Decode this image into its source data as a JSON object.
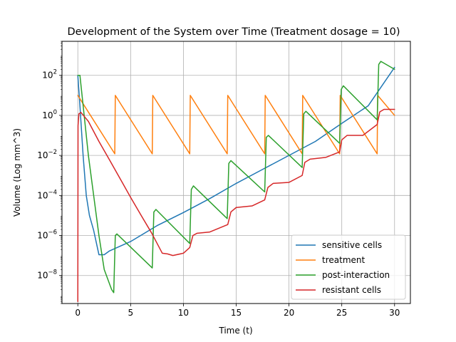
{
  "chart_data": {
    "type": "line",
    "title": "Development of the System over Time (Treatment dosage = 10)",
    "xlabel": "Time (t)",
    "ylabel": "Volume (Log mm^3)",
    "y_scale": "log",
    "xlim": [
      -1.5,
      31.5
    ],
    "ylim": [
      4e-10,
      5000
    ],
    "x_ticks": [
      0,
      5,
      10,
      15,
      20,
      25,
      30
    ],
    "x_tick_labels": [
      "0",
      "5",
      "10",
      "15",
      "20",
      "25",
      "30"
    ],
    "y_tick_exponents": [
      -8,
      -6,
      -4,
      -2,
      0,
      2
    ],
    "y_tick_base": "10",
    "grid": true,
    "legend_position": "lower-right",
    "series": [
      {
        "name": "sensitive cells",
        "color": "#1f77b4",
        "points": [
          [
            0,
            100
          ],
          [
            0.2,
            3
          ],
          [
            0.5,
            0.01
          ],
          [
            0.8,
            0.0001
          ],
          [
            1.1,
            1e-05
          ],
          [
            1.5,
            1.8e-06
          ],
          [
            2,
            1.1e-07
          ],
          [
            2.5,
            1.1e-07
          ],
          [
            3,
            1.7e-07
          ],
          [
            5,
            5e-07
          ],
          [
            7.5,
            3.1e-06
          ],
          [
            10,
            1.4e-05
          ],
          [
            12.5,
            7e-05
          ],
          [
            15,
            0.0004
          ],
          [
            17.5,
            0.002
          ],
          [
            20,
            0.01
          ],
          [
            22.5,
            0.05
          ],
          [
            25,
            0.4
          ],
          [
            27.5,
            3
          ],
          [
            30,
            250
          ]
        ]
      },
      {
        "name": "treatment",
        "color": "#ff7f0e",
        "points": [
          [
            0,
            10
          ],
          [
            3.5,
            0.012
          ],
          [
            3.55,
            10
          ],
          [
            7.05,
            0.012
          ],
          [
            7.1,
            10
          ],
          [
            10.6,
            0.012
          ],
          [
            10.65,
            10
          ],
          [
            14.15,
            0.012
          ],
          [
            14.2,
            10
          ],
          [
            17.7,
            0.012
          ],
          [
            17.75,
            10
          ],
          [
            21.25,
            0.012
          ],
          [
            21.3,
            10
          ],
          [
            24.8,
            0.012
          ],
          [
            24.85,
            10
          ],
          [
            28.35,
            0.012
          ],
          [
            28.4,
            10
          ],
          [
            30,
            1
          ]
        ]
      },
      {
        "name": "post-interaction",
        "color": "#2ca02c",
        "points": [
          [
            0,
            100
          ],
          [
            0.2,
            100
          ],
          [
            0.6,
            1
          ],
          [
            1,
            0.01
          ],
          [
            1.5,
            0.0001
          ],
          [
            2,
            1e-06
          ],
          [
            2.5,
            2e-08
          ],
          [
            3.2,
            2e-09
          ],
          [
            3.4,
            1.4e-09
          ],
          [
            3.55,
            1e-06
          ],
          [
            3.7,
            1.2e-06
          ],
          [
            7.05,
            2.4e-08
          ],
          [
            7.2,
            1.5e-05
          ],
          [
            7.4,
            2e-05
          ],
          [
            10.6,
            4e-07
          ],
          [
            10.75,
            0.0002
          ],
          [
            10.95,
            0.0003
          ],
          [
            14.15,
            7e-06
          ],
          [
            14.3,
            0.004
          ],
          [
            14.5,
            0.0055
          ],
          [
            17.7,
            0.00015
          ],
          [
            17.85,
            0.08
          ],
          [
            18.05,
            0.1
          ],
          [
            21.25,
            0.0025
          ],
          [
            21.4,
            1.2
          ],
          [
            21.6,
            1.6
          ],
          [
            24.8,
            0.04
          ],
          [
            24.95,
            20
          ],
          [
            25.15,
            30
          ],
          [
            28.35,
            0.6
          ],
          [
            28.5,
            350
          ],
          [
            28.7,
            500
          ],
          [
            30,
            200
          ]
        ]
      },
      {
        "name": "resistant cells",
        "color": "#d62728",
        "points": [
          [
            0,
            5e-10
          ],
          [
            0.02,
            0.3
          ],
          [
            0.1,
            1.2
          ],
          [
            0.3,
            1.4
          ],
          [
            1,
            0.5
          ],
          [
            2,
            0.05
          ],
          [
            3,
            0.006
          ],
          [
            4,
            0.0007
          ],
          [
            5,
            8e-05
          ],
          [
            6,
            1e-05
          ],
          [
            7,
            1.3e-06
          ],
          [
            8,
            1.3e-07
          ],
          [
            8.5,
            1.2e-07
          ],
          [
            9,
            1e-07
          ],
          [
            10,
            1.3e-07
          ],
          [
            10.6,
            2.5e-07
          ],
          [
            10.9,
            1e-06
          ],
          [
            11.3,
            1.3e-06
          ],
          [
            12.5,
            1.5e-06
          ],
          [
            14.2,
            3.5e-06
          ],
          [
            14.5,
            1.5e-05
          ],
          [
            15,
            2.5e-05
          ],
          [
            16.5,
            3e-05
          ],
          [
            17.7,
            6e-05
          ],
          [
            18,
            0.00025
          ],
          [
            18.5,
            0.0004
          ],
          [
            20,
            0.00045
          ],
          [
            21.25,
            0.001
          ],
          [
            21.5,
            0.0045
          ],
          [
            22,
            0.0065
          ],
          [
            23.5,
            0.008
          ],
          [
            24.8,
            0.015
          ],
          [
            25,
            0.06
          ],
          [
            25.5,
            0.1
          ],
          [
            27,
            0.1
          ],
          [
            28.35,
            0.35
          ],
          [
            28.6,
            1.5
          ],
          [
            29,
            2
          ],
          [
            30,
            2
          ]
        ]
      }
    ]
  }
}
